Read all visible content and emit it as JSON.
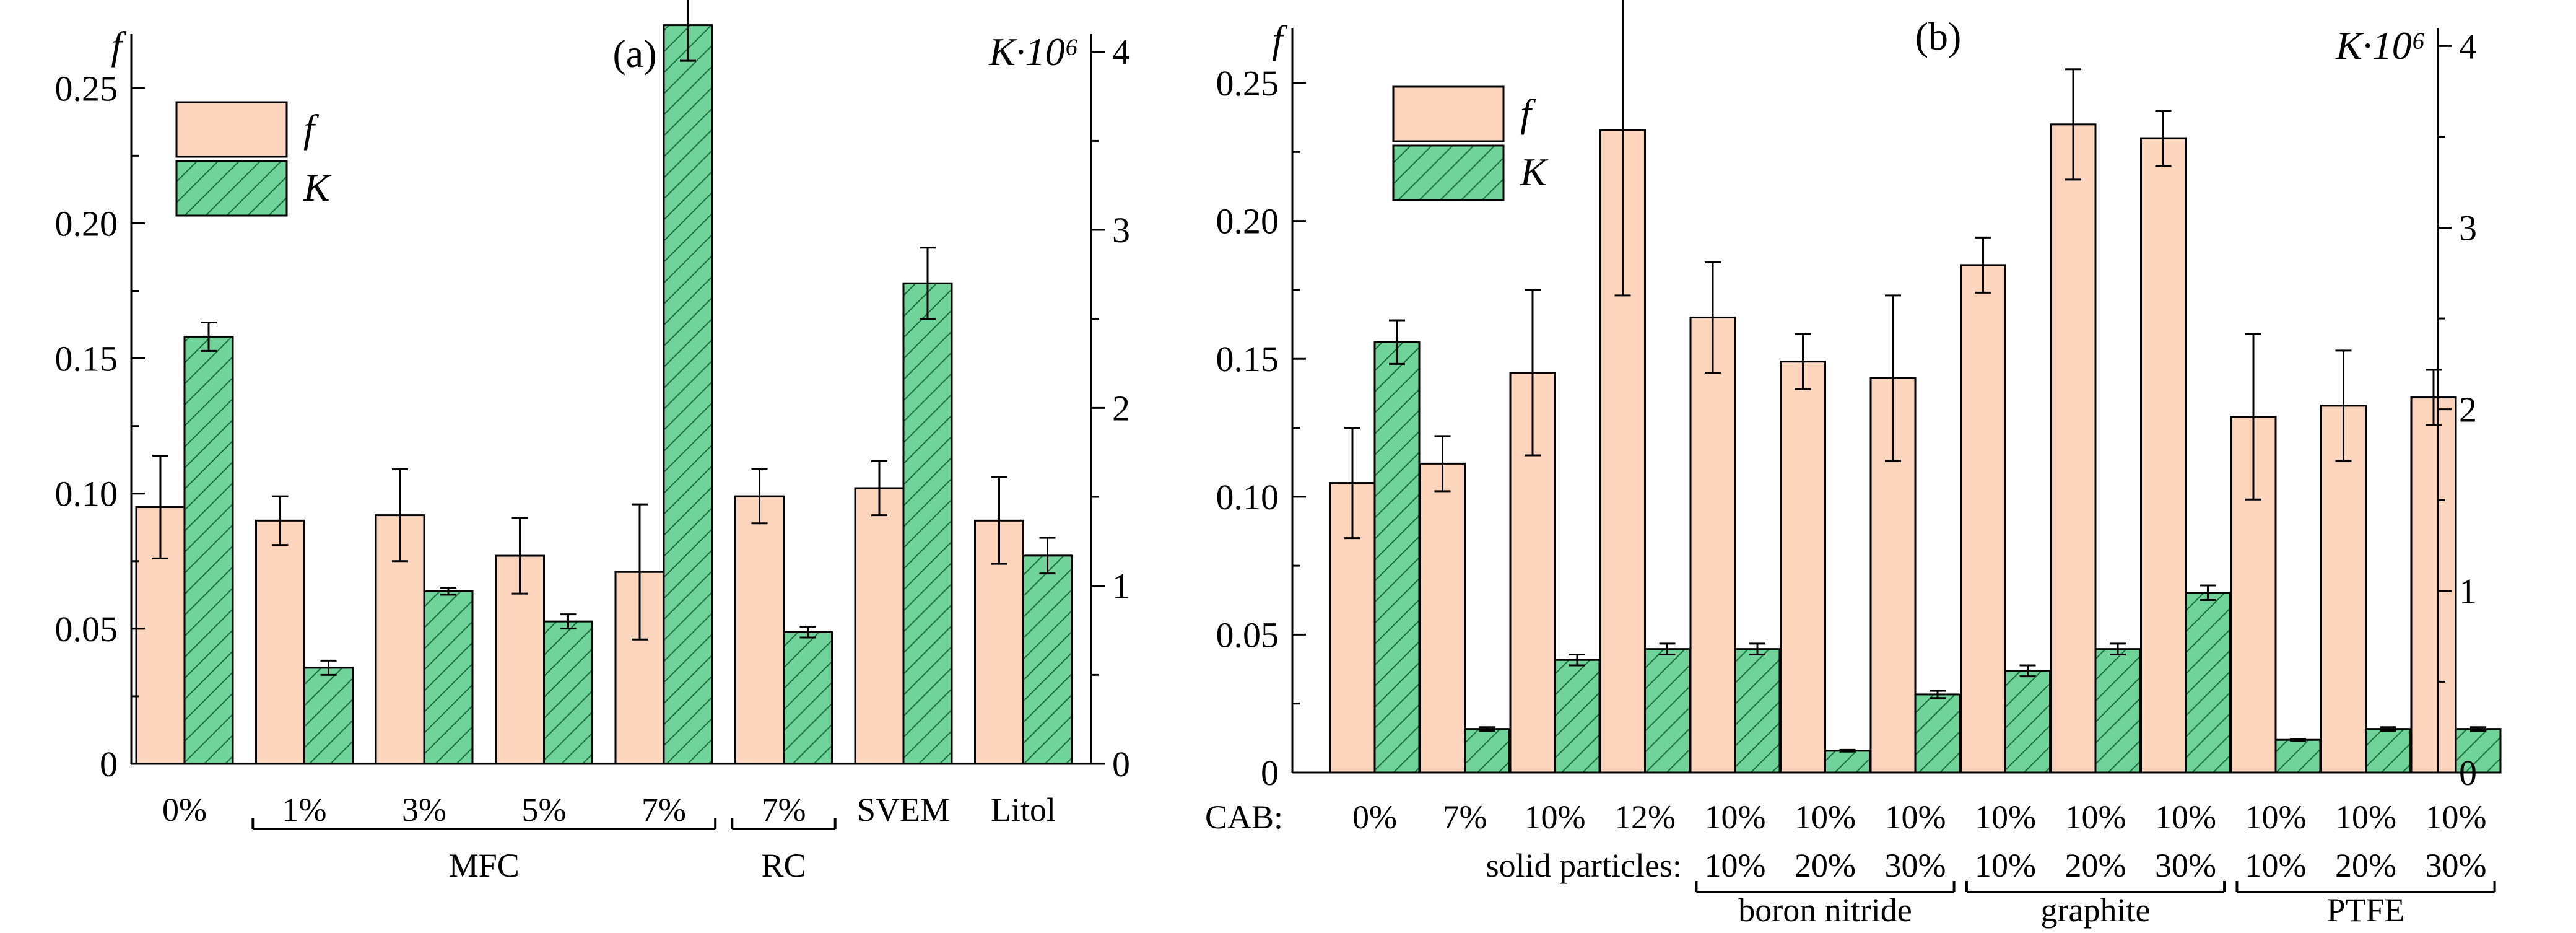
{
  "colors": {
    "f_fill": "#fcd5bc",
    "k_fill": "#6fd39a",
    "k_hatch": "#1e6e3c",
    "stroke": "#000000"
  },
  "chart_data": [
    {
      "type": "bar",
      "title": "(a)",
      "left_axis_label": "f",
      "right_axis_label": "K·10⁶",
      "left_ylim": [
        0,
        0.27
      ],
      "right_ylim": [
        0,
        4.1
      ],
      "left_ticks": [
        "0",
        "0.05",
        "0.10",
        "0.15",
        "0.20",
        "0.25"
      ],
      "right_ticks": [
        "0",
        "1",
        "2",
        "3",
        "4"
      ],
      "legend": [
        "f",
        "K"
      ],
      "categories": [
        "0%",
        "1%",
        "3%",
        "5%",
        "7%",
        "7%",
        "SVEM",
        "Litol"
      ],
      "groups": [
        {
          "label": "MFC",
          "from": 1,
          "to": 4
        },
        {
          "label": "RC",
          "from": 5,
          "to": 5
        }
      ],
      "series": [
        {
          "name": "f",
          "values": [
            0.095,
            0.09,
            0.092,
            0.077,
            0.071,
            0.099,
            0.102,
            0.09
          ],
          "errors": [
            0.019,
            0.009,
            0.017,
            0.014,
            0.025,
            0.01,
            0.01,
            0.016
          ]
        },
        {
          "name": "K",
          "values": [
            2.4,
            0.54,
            0.97,
            0.8,
            4.15,
            0.74,
            2.7,
            1.17
          ],
          "errors": [
            0.08,
            0.04,
            0.02,
            0.04,
            0.2,
            0.03,
            0.2,
            0.1
          ]
        }
      ]
    },
    {
      "type": "bar",
      "title": "(b)",
      "left_axis_label": "f",
      "right_axis_label": "K·10⁶",
      "left_ylim": [
        0,
        0.27
      ],
      "right_ylim": [
        0,
        4.1
      ],
      "left_ticks": [
        "0",
        "0.05",
        "0.10",
        "0.15",
        "0.20",
        "0.25"
      ],
      "right_ticks": [
        "0",
        "1",
        "2",
        "3",
        "4"
      ],
      "legend": [
        "f",
        "K"
      ],
      "row_header_1": "CAB:",
      "row_header_2": "solid particles:",
      "categories": [
        "0%",
        "7%",
        "10%",
        "12%",
        "10%",
        "10%",
        "10%",
        "10%",
        "10%",
        "10%",
        "10%",
        "10%",
        "10%"
      ],
      "particles": [
        "",
        "",
        "",
        "",
        "10%",
        "20%",
        "30%",
        "10%",
        "20%",
        "30%",
        "10%",
        "20%",
        "30%"
      ],
      "groups": [
        {
          "label": "boron nitride",
          "from": 4,
          "to": 6
        },
        {
          "label": "graphite",
          "from": 7,
          "to": 9
        },
        {
          "label": "PTFE",
          "from": 10,
          "to": 12
        }
      ],
      "series": [
        {
          "name": "f",
          "values": [
            0.105,
            0.112,
            0.145,
            0.233,
            0.165,
            0.149,
            0.143,
            0.184,
            0.235,
            0.23,
            0.129,
            0.133,
            0.136
          ],
          "errors": [
            0.02,
            0.01,
            0.03,
            0.06,
            0.02,
            0.01,
            0.03,
            0.01,
            0.02,
            0.01,
            0.03,
            0.02,
            0.01
          ]
        },
        {
          "name": "K",
          "values": [
            2.37,
            0.24,
            0.62,
            0.68,
            0.68,
            0.12,
            0.43,
            0.56,
            0.68,
            0.99,
            0.18,
            0.24,
            0.24
          ],
          "errors": [
            0.12,
            0.01,
            0.03,
            0.03,
            0.03,
            0.005,
            0.02,
            0.03,
            0.03,
            0.04,
            0.005,
            0.01,
            0.01
          ]
        }
      ]
    }
  ]
}
